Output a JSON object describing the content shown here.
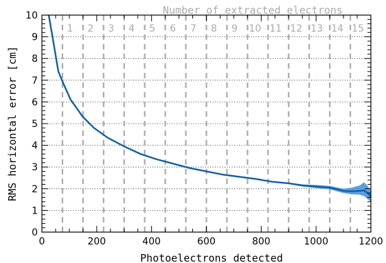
{
  "chart_data": {
    "type": "line",
    "title": "Number of extracted electrons",
    "xlabel": "Photoelectrons detected",
    "ylabel": "RMS horizontal error [cm]",
    "xlim": [
      0,
      1200
    ],
    "ylim": [
      0,
      10
    ],
    "x_ticks": [
      "0",
      "200",
      "400",
      "600",
      "800",
      "1000",
      "1200"
    ],
    "y_ticks": [
      "0",
      "1",
      "2",
      "3",
      "4",
      "5",
      "6",
      "7",
      "8",
      "9",
      "10"
    ],
    "grid": "horizontal dotted",
    "electron_markers": [
      {
        "label": "1",
        "x": 75
      },
      {
        "label": "2",
        "x": 150
      },
      {
        "label": "3",
        "x": 225
      },
      {
        "label": "4",
        "x": 300
      },
      {
        "label": "5",
        "x": 375
      },
      {
        "label": "6",
        "x": 450
      },
      {
        "label": "7",
        "x": 525
      },
      {
        "label": "8",
        "x": 600
      },
      {
        "label": "9",
        "x": 675
      },
      {
        "label": "10",
        "x": 750
      },
      {
        "label": "11",
        "x": 825
      },
      {
        "label": "12",
        "x": 900
      },
      {
        "label": "13",
        "x": 975
      },
      {
        "label": "14",
        "x": 1050
      },
      {
        "label": "15",
        "x": 1125
      }
    ],
    "series": [
      {
        "color": "#0f5ea8",
        "band_color": "#5b9fe0",
        "x": [
          25,
          40,
          60,
          80,
          105,
          150,
          190,
          240,
          300,
          360,
          420,
          480,
          540,
          600,
          660,
          720,
          780,
          840,
          900,
          950,
          1000,
          1050,
          1100,
          1130,
          1160,
          1175,
          1190,
          1200
        ],
        "y": [
          10.0,
          8.9,
          7.4,
          6.8,
          6.1,
          5.3,
          4.8,
          4.35,
          3.95,
          3.6,
          3.35,
          3.15,
          2.95,
          2.8,
          2.65,
          2.55,
          2.45,
          2.32,
          2.25,
          2.15,
          2.1,
          2.05,
          1.9,
          1.88,
          1.9,
          1.92,
          1.78,
          1.65
        ],
        "lower": [
          10.0,
          8.9,
          7.4,
          6.8,
          6.1,
          5.3,
          4.8,
          4.35,
          3.95,
          3.6,
          3.35,
          3.15,
          2.95,
          2.8,
          2.65,
          2.55,
          2.45,
          2.3,
          2.22,
          2.1,
          2.03,
          1.97,
          1.8,
          1.74,
          1.72,
          1.66,
          1.5,
          1.4
        ],
        "upper": [
          10.0,
          8.9,
          7.4,
          6.8,
          6.1,
          5.3,
          4.8,
          4.35,
          3.95,
          3.6,
          3.35,
          3.15,
          2.95,
          2.8,
          2.65,
          2.55,
          2.45,
          2.34,
          2.28,
          2.2,
          2.17,
          2.13,
          2.0,
          2.05,
          2.15,
          2.3,
          2.1,
          1.9
        ]
      }
    ]
  }
}
